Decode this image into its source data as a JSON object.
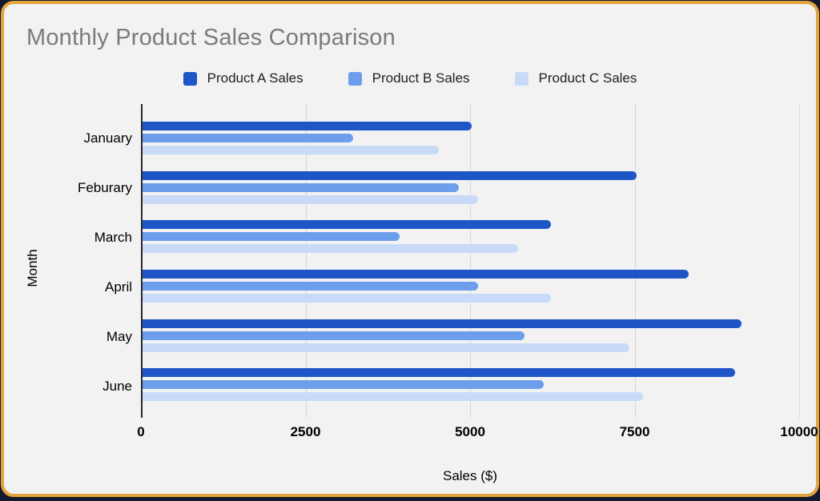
{
  "page": {
    "background_color": "#141a2e",
    "card_background": "#f2f2f3",
    "card_border_color": "#e2a43c",
    "title_color": "#7b7b7b"
  },
  "chart_data": {
    "type": "bar",
    "orientation": "horizontal",
    "title": "Monthly Product Sales Comparison",
    "xlabel": "Sales ($)",
    "ylabel": "Month",
    "xlim": [
      0,
      10000
    ],
    "xticks": [
      0,
      2500,
      5000,
      7500,
      10000
    ],
    "grid": "vertical",
    "legend_position": "top",
    "categories": [
      "January",
      "Feburary",
      "March",
      "April",
      "May",
      "June"
    ],
    "series": [
      {
        "name": "Product A Sales",
        "color": "#1e56c8",
        "values": [
          5000,
          7500,
          6200,
          8300,
          9100,
          9000
        ]
      },
      {
        "name": "Product B Sales",
        "color": "#6d9eeb",
        "values": [
          3200,
          4800,
          3900,
          5100,
          5800,
          6100
        ]
      },
      {
        "name": "Product C Sales",
        "color": "#c9daf8",
        "values": [
          4500,
          5100,
          5700,
          6200,
          7400,
          7600
        ]
      }
    ],
    "axis_line_color": "#2a2a2a",
    "gridline_color": "#d7d7d7"
  }
}
